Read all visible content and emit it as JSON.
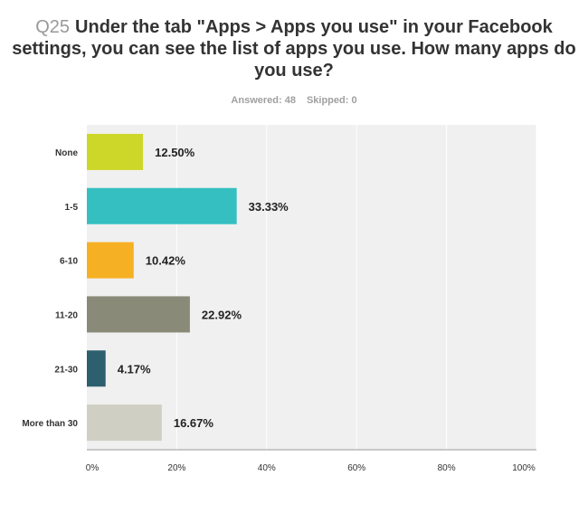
{
  "question": {
    "number": "Q25",
    "text": "Under the tab \"Apps > Apps you use\" in your Facebook settings, you can see the list of apps you use. How many apps do you use?"
  },
  "stats": {
    "answered": "Answered: 48",
    "skipped": "Skipped: 0"
  },
  "chart_data": {
    "type": "bar",
    "orientation": "horizontal",
    "categories": [
      "None",
      "1-5",
      "6-10",
      "11-20",
      "21-30",
      "More than 30"
    ],
    "values": [
      12.5,
      33.33,
      10.42,
      22.92,
      4.17,
      16.67
    ],
    "value_labels": [
      "12.50%",
      "33.33%",
      "10.42%",
      "22.92%",
      "4.17%",
      "16.67%"
    ],
    "colors": [
      "#cdd729",
      "#35bfc1",
      "#f6b024",
      "#898a77",
      "#2e5f6e",
      "#d0cfc3"
    ],
    "xlim": [
      0,
      100
    ],
    "x_ticks": [
      0,
      20,
      40,
      60,
      80,
      100
    ],
    "x_tick_labels": [
      "0%",
      "20%",
      "40%",
      "60%",
      "80%",
      "100%"
    ],
    "grid": true,
    "plot_background": "#f0f0f0"
  }
}
